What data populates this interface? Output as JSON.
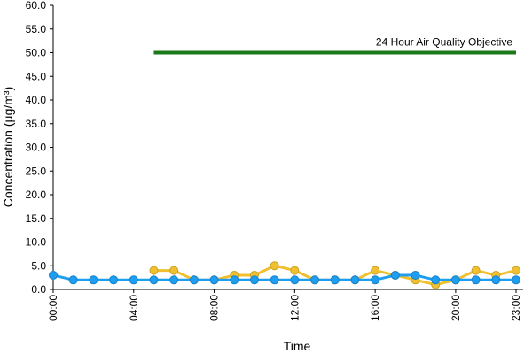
{
  "chart_data": {
    "type": "line",
    "x_label": "Time",
    "y_label": "Concentration (µg/m³)",
    "categories": [
      "00:00",
      null,
      null,
      null,
      "04:00",
      null,
      null,
      null,
      "08:00",
      null,
      null,
      null,
      "12:00",
      null,
      null,
      null,
      "16:00",
      null,
      null,
      null,
      "20:00",
      null,
      null,
      "23:00"
    ],
    "series": [
      {
        "name": "24 Hour Air Quality Objective",
        "color": "#1a7a1a",
        "marker": false,
        "values": [
          null,
          null,
          null,
          null,
          null,
          50,
          50,
          50,
          50,
          50,
          50,
          50,
          50,
          50,
          50,
          50,
          50,
          50,
          50,
          50,
          50,
          50,
          50,
          50
        ]
      },
      {
        "color": "#f0c030",
        "marker": true,
        "values": [
          null,
          null,
          null,
          null,
          null,
          4,
          4,
          2,
          2,
          3,
          3,
          5,
          4,
          2,
          2,
          2,
          4,
          3,
          2,
          1,
          2,
          4,
          3,
          4
        ]
      },
      {
        "color": "#1e9ef0",
        "marker": true,
        "values": [
          3,
          2,
          2,
          2,
          2,
          2,
          2,
          2,
          2,
          2,
          2,
          2,
          2,
          2,
          2,
          2,
          2,
          3,
          3,
          2,
          2,
          2,
          2,
          2
        ]
      }
    ],
    "ylim": [
      0,
      60
    ],
    "yticks": [
      {
        "value": 0,
        "label": "0.0"
      },
      {
        "value": 5,
        "label": "5.0"
      },
      {
        "value": 10,
        "label": "10.0"
      },
      {
        "value": 15,
        "label": "15.0"
      },
      {
        "value": 20,
        "label": "20.0"
      },
      {
        "value": 25,
        "label": "25.0"
      },
      {
        "value": 30,
        "label": "30.0"
      },
      {
        "value": 35,
        "label": "35.0"
      },
      {
        "value": 40,
        "label": "40.0"
      },
      {
        "value": 45,
        "label": "45.0"
      },
      {
        "value": 50,
        "label": "50.0"
      },
      {
        "value": 55,
        "label": "55.0"
      },
      {
        "value": 60,
        "label": "60.0"
      }
    ],
    "grid": false
  }
}
